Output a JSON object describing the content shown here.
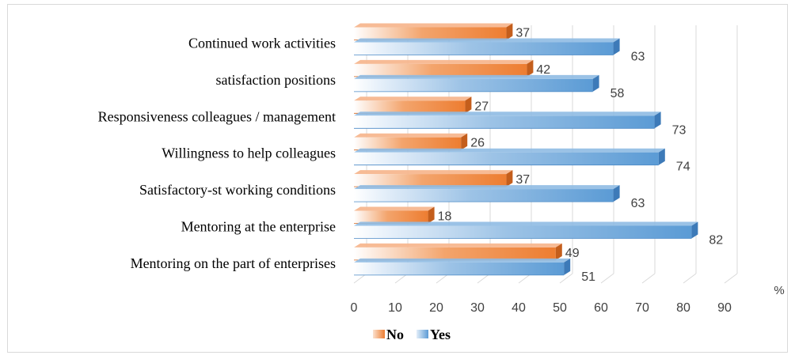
{
  "chart_data": {
    "type": "bar",
    "orientation": "horizontal",
    "style": "3d-clustered",
    "categories": [
      "Continued work activities",
      "satisfaction positions",
      "Responsiveness colleagues / management",
      "Willingness to help colleagues",
      "Satisfactory-st working conditions",
      "Mentoring at the enterprise",
      "Mentoring on the part of enterprises"
    ],
    "series": [
      {
        "name": "No",
        "color": "#ED7D31",
        "values": [
          37,
          42,
          27,
          26,
          37,
          18,
          49
        ]
      },
      {
        "name": "Yes",
        "color": "#5B9BD5",
        "values": [
          63,
          58,
          73,
          74,
          63,
          82,
          51
        ]
      }
    ],
    "xticks": [
      "0",
      "10",
      "20",
      "30",
      "40",
      "50",
      "60",
      "70",
      "80",
      "90"
    ],
    "xlim": [
      0,
      90
    ],
    "unit_label": "%",
    "legend_position": "bottom",
    "grid": true,
    "title": "",
    "xlabel": "",
    "ylabel": ""
  }
}
